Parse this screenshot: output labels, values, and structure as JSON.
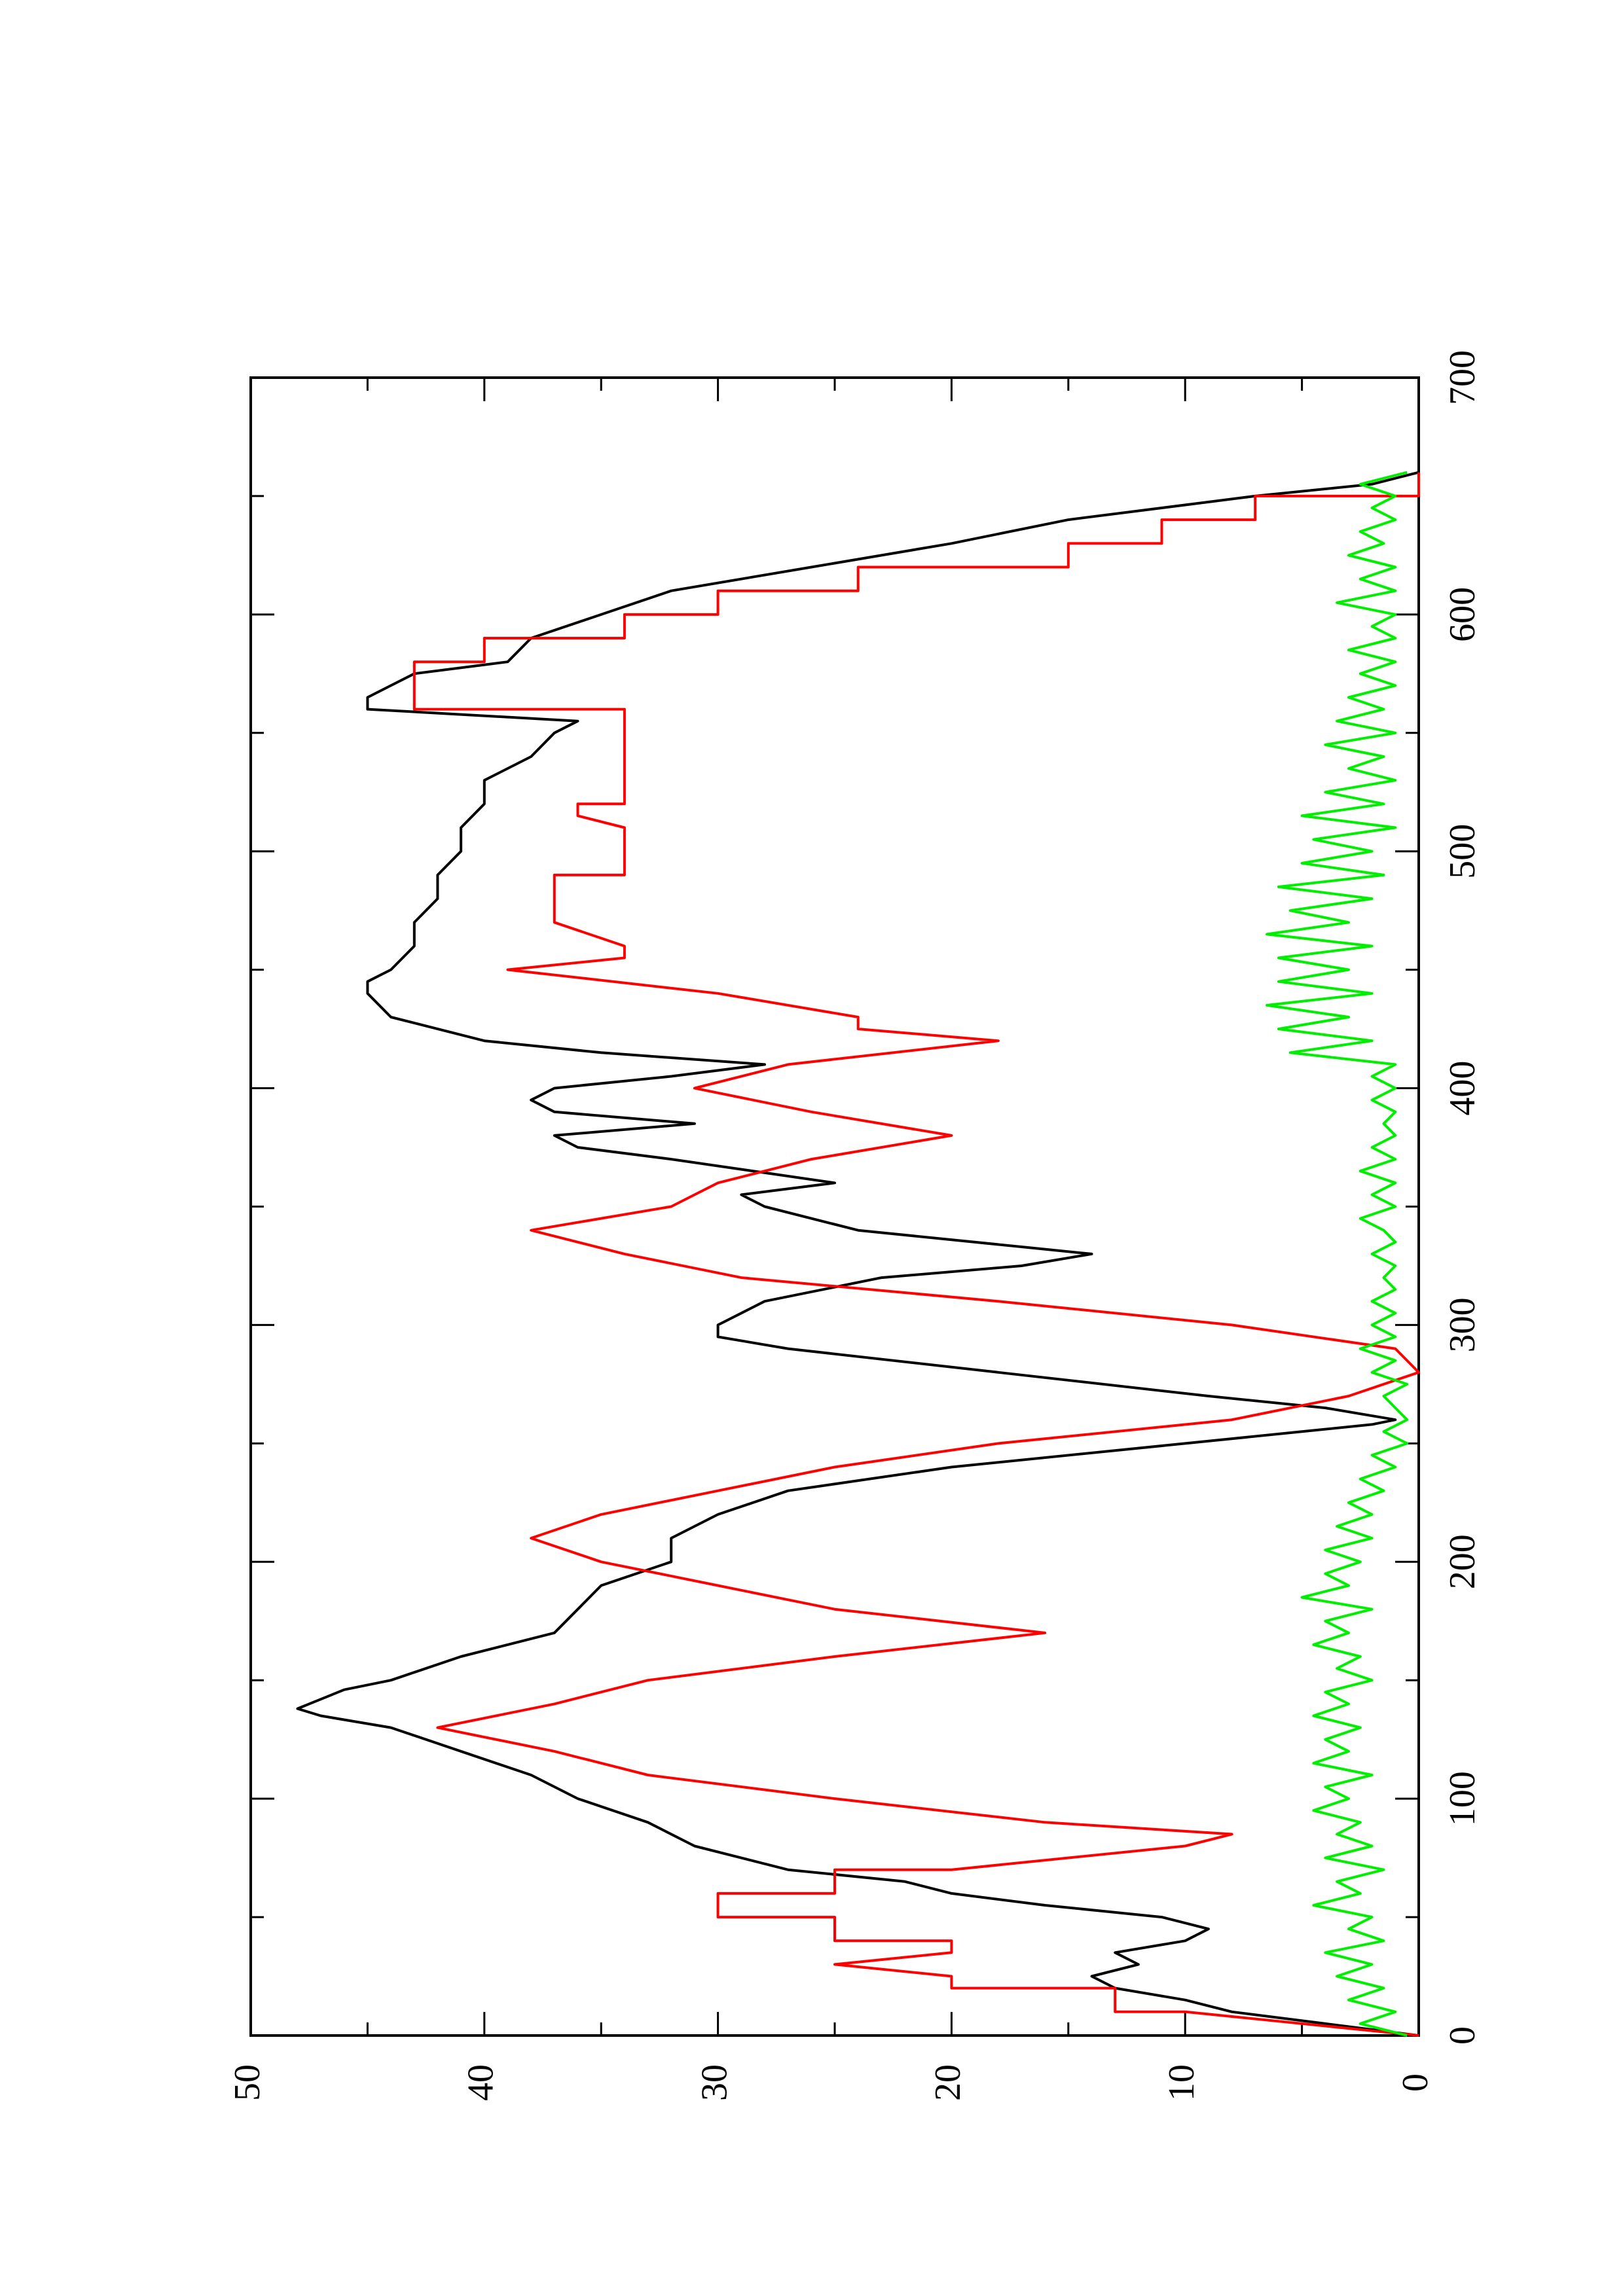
{
  "chart_data": {
    "type": "line",
    "title": "",
    "xlabel": "",
    "ylabel": "",
    "xlim": [
      0,
      700
    ],
    "ylim": [
      0,
      50
    ],
    "xticks": [
      0,
      100,
      200,
      300,
      400,
      500,
      600,
      700
    ],
    "xtick_labels": [
      "0",
      "100",
      "200",
      "300",
      "400",
      "500",
      "600",
      "700"
    ],
    "yticks": [
      0,
      10,
      20,
      30,
      40,
      50
    ],
    "ytick_labels": [
      "0",
      "10",
      "20",
      "30",
      "40",
      "50"
    ],
    "grid": false,
    "legend": "none",
    "orientation": "rotated-90-counterclockwise",
    "series": [
      {
        "color": "#000000",
        "x": [
          0,
          5,
          10,
          15,
          20,
          25,
          30,
          35,
          40,
          45,
          50,
          55,
          60,
          65,
          70,
          80,
          90,
          100,
          110,
          120,
          130,
          135,
          138,
          142,
          146,
          150,
          160,
          170,
          180,
          190,
          200,
          205,
          210,
          220,
          230,
          240,
          250,
          255,
          258,
          260,
          265,
          270,
          280,
          290,
          295,
          300,
          305,
          310,
          320,
          325,
          330,
          340,
          350,
          355,
          360,
          370,
          375,
          380,
          385,
          390,
          395,
          400,
          405,
          410,
          415,
          420,
          430,
          440,
          445,
          450,
          460,
          470,
          480,
          490,
          500,
          510,
          520,
          530,
          540,
          550,
          555,
          560,
          565,
          570,
          575,
          580,
          590,
          600,
          610,
          620,
          630,
          640,
          650,
          655,
          660
        ],
        "y": [
          0,
          4,
          8,
          10,
          13,
          14,
          12,
          13,
          10,
          9,
          11,
          16,
          20,
          22,
          27,
          31,
          33,
          36,
          38,
          41,
          44,
          47,
          48,
          47,
          46,
          44,
          41,
          37,
          36,
          35,
          32,
          32,
          32,
          30,
          27,
          20,
          10,
          5,
          2,
          1,
          4,
          9,
          18,
          27,
          30,
          30,
          29,
          28,
          23,
          17,
          14,
          24,
          28,
          29,
          25,
          32,
          36,
          37,
          31,
          37,
          38,
          37,
          32,
          28,
          35,
          40,
          44,
          45,
          45,
          44,
          43,
          43,
          42,
          42,
          41,
          41,
          40,
          40,
          38,
          37,
          36,
          45,
          45,
          44,
          43,
          39,
          38,
          35,
          32,
          26,
          20,
          15,
          7,
          2,
          0
        ]
      },
      {
        "color": "#ff0000",
        "x": [
          0,
          10,
          10,
          20,
          20,
          25,
          30,
          30,
          35,
          40,
          40,
          50,
          50,
          55,
          60,
          60,
          65,
          70,
          70,
          80,
          80,
          85,
          90,
          90,
          100,
          100,
          110,
          110,
          120,
          120,
          130,
          130,
          140,
          140,
          150,
          150,
          160,
          160,
          170,
          170,
          180,
          180,
          190,
          190,
          200,
          200,
          210,
          210,
          220,
          220,
          230,
          230,
          240,
          240,
          250,
          250,
          260,
          260,
          270,
          270,
          280,
          280,
          290,
          290,
          300,
          300,
          310,
          310,
          320,
          320,
          330,
          330,
          340,
          340,
          350,
          350,
          355,
          360,
          360,
          370,
          370,
          380,
          380,
          390,
          390,
          400,
          400,
          410,
          410,
          420,
          420,
          425,
          430,
          440,
          440,
          450,
          450,
          455,
          460,
          460,
          470,
          480,
          490,
          490,
          500,
          510,
          515,
          520,
          520,
          540,
          555,
          560,
          560,
          570,
          575,
          580,
          580,
          590,
          590,
          600,
          600,
          610,
          610,
          620,
          620,
          630,
          630,
          640,
          640,
          650,
          650,
          660
        ],
        "y": [
          0,
          10,
          13,
          13,
          20,
          20,
          25,
          25,
          20,
          20,
          25,
          25,
          30,
          30,
          30,
          25,
          25,
          25,
          20,
          10,
          10,
          8,
          16,
          16,
          25,
          25,
          33,
          33,
          37,
          37,
          42,
          42,
          37,
          37,
          33,
          33,
          25,
          25,
          16,
          16,
          25,
          25,
          30,
          30,
          35,
          35,
          38,
          38,
          35,
          35,
          30,
          30,
          25,
          25,
          18,
          18,
          8,
          8,
          3,
          3,
          0,
          0,
          1,
          1,
          8,
          8,
          18,
          18,
          29,
          29,
          34,
          34,
          38,
          38,
          32,
          32,
          31,
          30,
          30,
          26,
          26,
          20,
          20,
          26,
          26,
          31,
          31,
          27,
          27,
          18,
          18,
          24,
          24,
          30,
          30,
          39,
          39,
          34,
          34,
          34,
          37,
          37,
          37,
          34,
          34,
          34,
          36,
          36,
          34,
          34,
          34,
          34,
          43,
          43,
          43,
          43,
          40,
          40,
          34,
          34,
          30,
          30,
          24,
          24,
          15,
          15,
          11,
          11,
          7,
          7,
          0,
          0
        ]
      },
      {
        "color": "#00ee00",
        "x": [
          0,
          5,
          10,
          15,
          20,
          25,
          30,
          35,
          40,
          45,
          50,
          55,
          60,
          65,
          70,
          75,
          80,
          85,
          90,
          95,
          100,
          105,
          110,
          115,
          120,
          125,
          130,
          135,
          140,
          145,
          150,
          155,
          160,
          165,
          170,
          175,
          180,
          185,
          190,
          195,
          200,
          205,
          210,
          215,
          220,
          225,
          230,
          235,
          240,
          245,
          250,
          255,
          260,
          265,
          270,
          275,
          280,
          285,
          290,
          295,
          300,
          305,
          310,
          315,
          320,
          325,
          330,
          335,
          340,
          345,
          350,
          355,
          360,
          365,
          370,
          375,
          380,
          385,
          390,
          395,
          400,
          405,
          410,
          415,
          420,
          425,
          430,
          435,
          440,
          445,
          450,
          455,
          460,
          465,
          470,
          475,
          480,
          485,
          490,
          495,
          500,
          505,
          510,
          515,
          520,
          525,
          530,
          535,
          540,
          545,
          550,
          555,
          560,
          565,
          570,
          575,
          580,
          585,
          590,
          595,
          600,
          605,
          610,
          615,
          620,
          625,
          630,
          635,
          640,
          645,
          650,
          655,
          660
        ],
        "y": [
          0.5,
          2.5,
          1,
          3,
          1.5,
          3.5,
          2,
          4,
          1.5,
          3,
          2,
          4.5,
          2.5,
          3.5,
          1.5,
          4,
          2,
          3.5,
          2.5,
          4.5,
          3,
          4,
          2,
          4.5,
          3,
          4,
          2.5,
          4.5,
          3,
          4,
          2,
          3.5,
          2.5,
          4.5,
          3,
          4,
          2,
          5,
          3,
          4,
          2.5,
          4,
          2,
          3.5,
          2,
          3,
          1.5,
          2.5,
          1,
          2,
          0.5,
          1.5,
          0.5,
          1,
          1.5,
          0.5,
          2,
          1,
          2.5,
          1,
          2,
          1,
          2,
          1,
          1.5,
          1,
          2,
          1,
          1.5,
          2.5,
          1,
          2,
          1,
          2.5,
          1,
          2,
          1,
          1.5,
          1,
          2,
          1,
          2,
          1,
          5.5,
          2,
          6,
          3,
          6.5,
          2,
          6,
          3,
          6,
          2,
          6.5,
          3,
          5.5,
          2,
          6,
          1.5,
          5,
          2,
          4.5,
          1,
          5,
          1.5,
          4,
          1,
          3,
          1.5,
          4,
          1,
          3.5,
          1.5,
          3,
          1,
          2.5,
          1,
          3,
          1,
          2,
          1,
          3.5,
          1,
          2.5,
          1,
          3,
          1.5,
          2.5,
          1,
          2,
          1,
          2.5,
          0.5
        ]
      }
    ]
  }
}
